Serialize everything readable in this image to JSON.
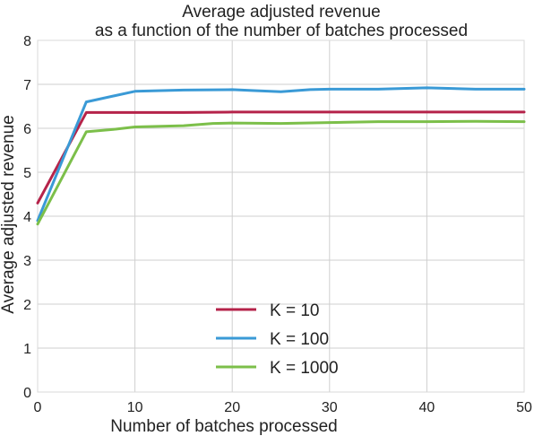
{
  "chart_data": {
    "type": "line",
    "title": [
      "Average adjusted revenue",
      "as a function of the number of batches processed"
    ],
    "xlabel": "Number of batches processed",
    "ylabel": "Average adjusted revenue",
    "xlim": [
      0,
      50
    ],
    "ylim": [
      0,
      8
    ],
    "xticks": [
      0,
      10,
      20,
      30,
      40,
      50
    ],
    "yticks": [
      0,
      1,
      2,
      3,
      4,
      5,
      6,
      7,
      8
    ],
    "grid": true,
    "legend_position": "bottom-center",
    "series": [
      {
        "name": "K = 10",
        "color": "#b5234a",
        "x": [
          0,
          5,
          10,
          15,
          20,
          25,
          30,
          35,
          40,
          45,
          50
        ],
        "y": [
          4.3,
          6.36,
          6.36,
          6.36,
          6.37,
          6.37,
          6.37,
          6.37,
          6.37,
          6.37,
          6.37
        ]
      },
      {
        "name": "K = 100",
        "color": "#3a9ad6",
        "x": [
          0,
          5,
          10,
          15,
          20,
          22,
          25,
          28,
          30,
          35,
          40,
          45,
          50
        ],
        "y": [
          3.9,
          6.6,
          6.84,
          6.87,
          6.88,
          6.86,
          6.83,
          6.88,
          6.89,
          6.89,
          6.92,
          6.89,
          6.89
        ]
      },
      {
        "name": "K = 1000",
        "color": "#7cbf4a",
        "x": [
          0,
          5,
          8,
          10,
          15,
          18,
          20,
          25,
          30,
          35,
          40,
          45,
          50
        ],
        "y": [
          3.82,
          5.92,
          5.98,
          6.03,
          6.06,
          6.11,
          6.12,
          6.11,
          6.13,
          6.15,
          6.15,
          6.16,
          6.15
        ]
      }
    ]
  }
}
